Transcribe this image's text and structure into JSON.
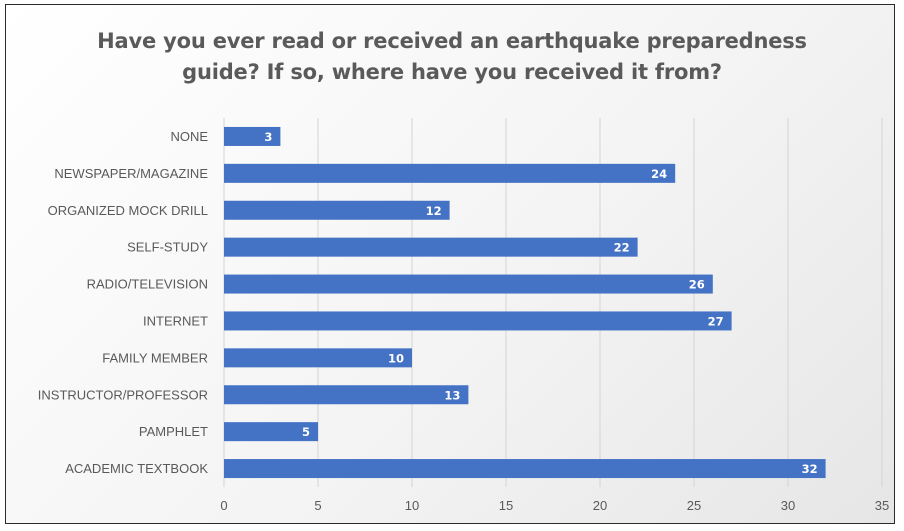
{
  "chart_data": {
    "type": "bar",
    "orientation": "horizontal",
    "title_lines": [
      "Have you ever read or received an earthquake preparedness",
      "guide? If so, where have you received it from?"
    ],
    "categories": [
      "NONE",
      "NEWSPAPER/MAGAZINE",
      "ORGANIZED MOCK DRILL",
      "SELF-STUDY",
      "RADIO/TELEVISION",
      "INTERNET",
      "FAMILY MEMBER",
      "INSTRUCTOR/PROFESSOR",
      "PAMPHLET",
      "ACADEMIC TEXTBOOK"
    ],
    "values": [
      3,
      24,
      12,
      22,
      26,
      27,
      10,
      13,
      5,
      32
    ],
    "xlim": [
      0,
      35
    ],
    "xticks": [
      0,
      5,
      10,
      15,
      20,
      25,
      30,
      35
    ],
    "grid": true,
    "legend": "none",
    "bar_color": "#4472c4",
    "data_labels": true
  }
}
